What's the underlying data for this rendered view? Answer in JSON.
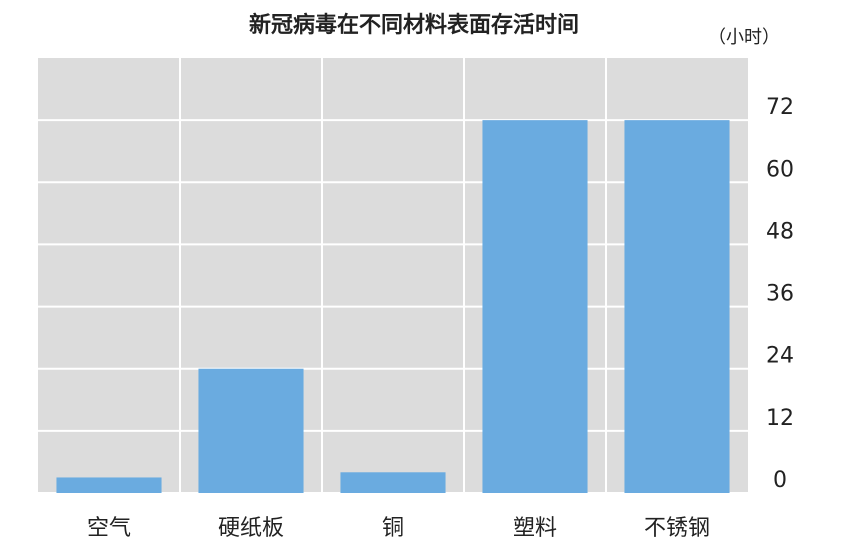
{
  "chart_data": {
    "type": "bar",
    "title": "新冠病毒在不同材料表面存活时间",
    "unit_label": "（小时）",
    "categories": [
      "空气",
      "硬纸板",
      "铜",
      "塑料",
      "不锈钢"
    ],
    "values": [
      3,
      24,
      4,
      72,
      72
    ],
    "color": "#6aabe0",
    "ylim": [
      0,
      84
    ],
    "yticks": [
      0,
      12,
      24,
      36,
      48,
      60,
      72
    ],
    "grid": true,
    "y_axis_side": "right"
  }
}
